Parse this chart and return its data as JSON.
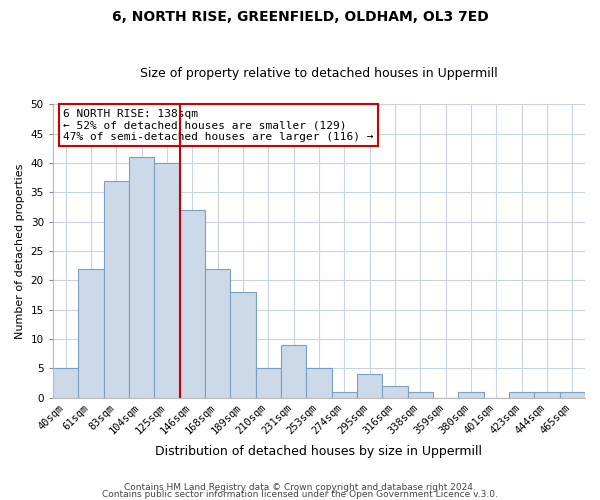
{
  "title": "6, NORTH RISE, GREENFIELD, OLDHAM, OL3 7ED",
  "subtitle": "Size of property relative to detached houses in Uppermill",
  "xlabel": "Distribution of detached houses by size in Uppermill",
  "ylabel": "Number of detached properties",
  "bar_color": "#ccd9e8",
  "bar_edge_color": "#7a9fc0",
  "categories": [
    "40sqm",
    "61sqm",
    "83sqm",
    "104sqm",
    "125sqm",
    "146sqm",
    "168sqm",
    "189sqm",
    "210sqm",
    "231sqm",
    "253sqm",
    "274sqm",
    "295sqm",
    "316sqm",
    "338sqm",
    "359sqm",
    "380sqm",
    "401sqm",
    "423sqm",
    "444sqm",
    "465sqm"
  ],
  "values": [
    5,
    22,
    37,
    41,
    40,
    32,
    22,
    18,
    5,
    9,
    5,
    1,
    4,
    2,
    1,
    0,
    1,
    0,
    1,
    1,
    1
  ],
  "ylim": [
    0,
    50
  ],
  "yticks": [
    0,
    5,
    10,
    15,
    20,
    25,
    30,
    35,
    40,
    45,
    50
  ],
  "vline_index": 5,
  "vline_color": "#cc0000",
  "annotation_title": "6 NORTH RISE: 138sqm",
  "annotation_line1": "← 52% of detached houses are smaller (129)",
  "annotation_line2": "47% of semi-detached houses are larger (116) →",
  "annotation_box_color": "#ffffff",
  "annotation_box_edge": "#cc0000",
  "footer1": "Contains HM Land Registry data © Crown copyright and database right 2024.",
  "footer2": "Contains public sector information licensed under the Open Government Licence v.3.0.",
  "background_color": "#ffffff",
  "grid_color": "#c8d4e4",
  "title_fontsize": 10,
  "subtitle_fontsize": 9,
  "ylabel_fontsize": 8,
  "xlabel_fontsize": 9,
  "tick_fontsize": 7.5,
  "footer_fontsize": 6.5,
  "annotation_fontsize": 8
}
